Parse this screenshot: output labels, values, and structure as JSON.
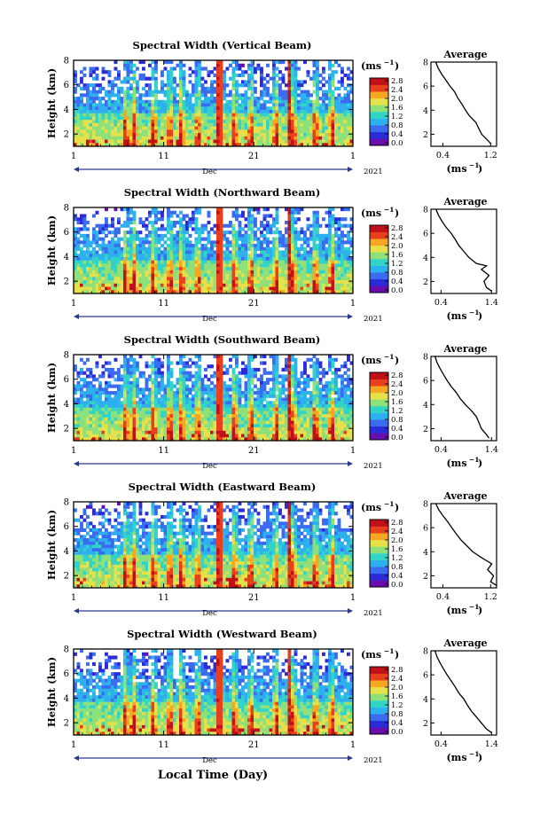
{
  "chart_data": [
    {
      "type": "heatmap",
      "title": "Spectral Width (Vertical Beam)",
      "ylabel": "Height (km)",
      "x_ticks": [
        "1",
        "11",
        "21",
        "1"
      ],
      "ylim": [
        1,
        8
      ],
      "y_ticks": [
        2,
        4,
        6,
        8
      ],
      "colorbar_unit": "(ms",
      "colorbar_unit_exp": "−1",
      "colorbar_ticks": [
        "2.8",
        "2.4",
        "2.0",
        "1.6",
        "1.2",
        "0.8",
        "0.4",
        "0.0"
      ],
      "month": "Dec",
      "year": "2021",
      "avg_title": "Average",
      "avg_ticks": [
        "0.4",
        "1.2"
      ],
      "avg_xlim": [
        0.2,
        1.3
      ],
      "avg_profile": [
        [
          1.21,
          1.2
        ],
        [
          1.15,
          1.5
        ],
        [
          1.05,
          2.0
        ],
        [
          1.0,
          2.5
        ],
        [
          0.95,
          3.0
        ],
        [
          0.85,
          3.5
        ],
        [
          0.78,
          4.0
        ],
        [
          0.72,
          4.5
        ],
        [
          0.65,
          5.0
        ],
        [
          0.6,
          5.5
        ],
        [
          0.52,
          6.0
        ],
        [
          0.45,
          6.5
        ],
        [
          0.38,
          7.0
        ],
        [
          0.32,
          7.5
        ],
        [
          0.28,
          8.0
        ]
      ]
    },
    {
      "type": "heatmap",
      "title": "Spectral Width (Northward Beam)",
      "ylabel": "Height (km)",
      "x_ticks": [
        "1",
        "11",
        "21",
        "1"
      ],
      "ylim": [
        1,
        8
      ],
      "y_ticks": [
        2,
        4,
        6,
        8
      ],
      "colorbar_unit": "(ms",
      "colorbar_unit_exp": "−1",
      "colorbar_ticks": [
        "2.8",
        "2.4",
        "2.0",
        "1.6",
        "1.2",
        "0.8",
        "0.4",
        "0.0"
      ],
      "month": "Dec",
      "year": "2021",
      "avg_title": "Average",
      "avg_ticks": [
        "0.4",
        "1.4"
      ],
      "avg_xlim": [
        0.2,
        1.5
      ],
      "avg_profile": [
        [
          1.4,
          1.2
        ],
        [
          1.3,
          1.5
        ],
        [
          1.25,
          2.0
        ],
        [
          1.35,
          2.5
        ],
        [
          1.2,
          3.0
        ],
        [
          1.3,
          3.3
        ],
        [
          1.1,
          3.5
        ],
        [
          0.95,
          4.0
        ],
        [
          0.85,
          4.5
        ],
        [
          0.75,
          5.0
        ],
        [
          0.68,
          5.5
        ],
        [
          0.6,
          6.0
        ],
        [
          0.5,
          6.5
        ],
        [
          0.42,
          7.0
        ],
        [
          0.35,
          7.5
        ],
        [
          0.3,
          8.0
        ]
      ]
    },
    {
      "type": "heatmap",
      "title": "Spectral Width (Southward Beam)",
      "ylabel": "Height (km)",
      "x_ticks": [
        "1",
        "11",
        "21",
        "1"
      ],
      "ylim": [
        1,
        8
      ],
      "y_ticks": [
        2,
        4,
        6,
        8
      ],
      "colorbar_unit": "(ms",
      "colorbar_unit_exp": "−1",
      "colorbar_ticks": [
        "2.8",
        "2.4",
        "2.0",
        "1.6",
        "1.2",
        "0.8",
        "0.4",
        "0.0"
      ],
      "month": "Dec",
      "year": "2021",
      "avg_title": "Average",
      "avg_ticks": [
        "0.4",
        "1.4"
      ],
      "avg_xlim": [
        0.2,
        1.5
      ],
      "avg_profile": [
        [
          1.35,
          1.2
        ],
        [
          1.3,
          1.5
        ],
        [
          1.2,
          2.0
        ],
        [
          1.15,
          2.5
        ],
        [
          1.1,
          3.0
        ],
        [
          1.0,
          3.5
        ],
        [
          0.88,
          4.0
        ],
        [
          0.78,
          4.5
        ],
        [
          0.7,
          5.0
        ],
        [
          0.6,
          5.5
        ],
        [
          0.52,
          6.0
        ],
        [
          0.45,
          6.5
        ],
        [
          0.38,
          7.0
        ],
        [
          0.32,
          7.5
        ],
        [
          0.28,
          8.0
        ]
      ]
    },
    {
      "type": "heatmap",
      "title": "Spectral Width (Eastward Beam)",
      "ylabel": "Height (km)",
      "x_ticks": [
        "1",
        "11",
        "21",
        "1"
      ],
      "ylim": [
        1,
        8
      ],
      "y_ticks": [
        2,
        4,
        6,
        8
      ],
      "colorbar_unit": "(ms",
      "colorbar_unit_exp": "−1",
      "colorbar_ticks": [
        "2.8",
        "2.4",
        "2.0",
        "1.6",
        "1.2",
        "0.8",
        "0.4",
        "0.0"
      ],
      "month": "Dec",
      "year": "2021",
      "avg_title": "Average",
      "avg_ticks": [
        "0.4",
        "1.2"
      ],
      "avg_xlim": [
        0.2,
        1.3
      ],
      "avg_profile": [
        [
          1.3,
          1.2
        ],
        [
          1.2,
          1.5
        ],
        [
          1.25,
          2.0
        ],
        [
          1.15,
          2.5
        ],
        [
          1.22,
          3.0
        ],
        [
          1.05,
          3.5
        ],
        [
          0.9,
          4.0
        ],
        [
          0.8,
          4.5
        ],
        [
          0.7,
          5.0
        ],
        [
          0.62,
          5.5
        ],
        [
          0.55,
          6.0
        ],
        [
          0.48,
          6.5
        ],
        [
          0.4,
          7.0
        ],
        [
          0.33,
          7.5
        ],
        [
          0.28,
          8.0
        ]
      ]
    },
    {
      "type": "heatmap",
      "title": "Spectral Width (Westward Beam)",
      "ylabel": "Height (km)",
      "x_ticks": [
        "1",
        "11",
        "21",
        "1"
      ],
      "ylim": [
        1,
        8
      ],
      "y_ticks": [
        2,
        4,
        6,
        8
      ],
      "colorbar_unit": "(ms",
      "colorbar_unit_exp": "−1",
      "colorbar_ticks": [
        "2.8",
        "2.4",
        "2.0",
        "1.6",
        "1.2",
        "0.8",
        "0.4",
        "0.0"
      ],
      "month": "Dec",
      "year": "2021",
      "avg_title": "Average",
      "avg_ticks": [
        "0.4",
        "1.4"
      ],
      "avg_xlim": [
        0.2,
        1.5
      ],
      "avg_profile": [
        [
          1.4,
          1.2
        ],
        [
          1.3,
          1.5
        ],
        [
          1.2,
          2.0
        ],
        [
          1.1,
          2.5
        ],
        [
          1.0,
          3.0
        ],
        [
          0.92,
          3.5
        ],
        [
          0.85,
          4.0
        ],
        [
          0.75,
          4.5
        ],
        [
          0.68,
          5.0
        ],
        [
          0.6,
          5.5
        ],
        [
          0.52,
          6.0
        ],
        [
          0.45,
          6.5
        ],
        [
          0.38,
          7.0
        ],
        [
          0.32,
          7.5
        ],
        [
          0.28,
          8.0
        ]
      ]
    }
  ],
  "xlabel": "Local Time (Day)",
  "colormap": [
    "#6a0dad",
    "#2b2bd8",
    "#3b6cf0",
    "#2fb0ee",
    "#33d4c8",
    "#8ee07a",
    "#e6e04a",
    "#f5a623",
    "#e8401d",
    "#c0101a"
  ]
}
